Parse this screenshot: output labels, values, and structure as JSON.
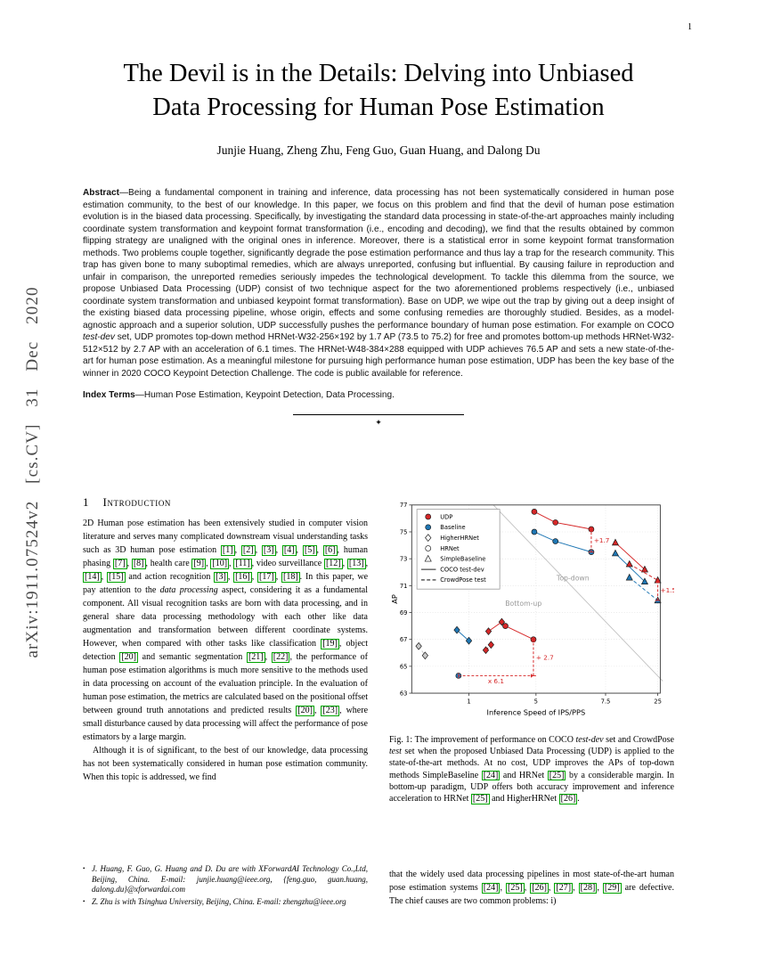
{
  "page": {
    "number": "1"
  },
  "arxiv_stamp": "arXiv:1911.07524v2 [cs.CV] 31 Dec 2020",
  "title": {
    "line1": "The Devil is in the Details: Delving into Unbiased",
    "line2": "Data Processing for Human Pose Estimation"
  },
  "authors": "Junjie Huang, Zheng Zhu, Feng Guo, Guan Huang, and Dalong Du",
  "abstract": {
    "label": "Abstract",
    "text": "—Being a fundamental component in training and inference, data processing has not been systematically considered in human pose estimation community, to the best of our knowledge. In this paper, we focus on this problem and find that the devil of human pose estimation evolution is in the biased data processing. Specifically, by investigating the standard data processing in state-of-the-art approaches mainly including coordinate system transformation and keypoint format transformation (i.e., encoding and decoding), we find that the results obtained by common flipping strategy are unaligned with the original ones in inference. Moreover, there is a statistical error in some keypoint format transformation methods. Two problems couple together, significantly degrade the pose estimation performance and thus lay a trap for the research community. This trap has given bone to many suboptimal remedies, which are always unreported, confusing but influential. By causing failure in reproduction and unfair in comparison, the unreported remedies seriously impedes the technological development. To tackle this dilemma from the source, we propose Unbiased Data Processing (UDP) consist of two technique aspect for the two aforementioned problems respectively (i.e., unbiased coordinate system transformation and unbiased keypoint format transformation). Base on UDP, we wipe out the trap by giving out a deep insight of the existing biased data processing pipeline, whose origin, effects and some confusing remedies are thoroughly studied. Besides, as a model-agnostic approach and a superior solution, UDP successfully pushes the performance boundary of human pose estimation. For example on COCO *test-dev* set, UDP promotes top-down method HRNet-W32-256×192 by 1.7 AP (73.5 to 75.2) for free and promotes bottom-up methods HRNet-W32-512×512 by 2.7 AP with an acceleration of 6.1 times. The HRNet-W48-384×288 equipped with UDP achieves 76.5 AP and sets a new state-of-the-art for human pose estimation. As a meaningful milestone for pursuing high performance human pose estimation, UDP has been the key base of the winner in 2020 COCO Keypoint Detection Challenge. The code is public available for reference."
  },
  "index_terms": {
    "label": "Index Terms",
    "text": "—Human Pose Estimation, Keypoint Detection, Data Processing."
  },
  "separator_glyph": "✦",
  "section1": {
    "number": "1",
    "title": "Introduction"
  },
  "intro": {
    "p1": "2D Human pose estimation has been extensively studied in computer vision literature and serves many complicated downstream visual understanding tasks such as 3D human pose estimation [1], [2], [3], [4], [5], [6], human phasing [7], [8], health care [9], [10], [11], video surveillance [12], [13], [14], [15] and action recognition [3], [16], [17], [18]. In this paper, we pay attention to the *data processing* aspect, considering it as a fundamental component. All visual recognition tasks are born with data processing, and in general share data processing methodology with each other like data augmentation and transformation between different coordinate systems. However, when compared with other tasks like classification [19], object detection [20] and semantic segmentation [21], [22], the performance of human pose estimation algorithms is much more sensitive to the methods used in data processing on account of the evaluation principle. In the evaluation of human pose estimation, the metrics are calculated based on the positional offset between ground truth annotations and predicted results [20], [23], where small disturbance caused by data processing will affect the performance of pose estimators by a large margin.",
    "p2": "Although it is of significant, to the best of our knowledge, data processing has not been systematically considered in human pose estimation community. When this topic is addressed, we find"
  },
  "footnotes": {
    "bullet": "•",
    "items": [
      "J. Huang, F. Guo, G. Huang and D. Du are with XForwardAI Technology Co.,Ltd, Beijing, China. E-mail: junjie.huang@ieee.org, {feng.guo, guan.huang, dalong.du}@xforwardai.com",
      "Z. Zhu is with Tsinghua University, Beijing, China. E-mail: zhengzhu@ieee.org"
    ]
  },
  "figure1": {
    "caption": "Fig. 1: The improvement of performance on COCO *test-dev* set and CrowdPose *test* set when the proposed Unbiased Data Processing (UDP) is applied to the state-of-the-art methods. At no cost, UDP improves the APs of top-down methods SimpleBaseline [24] and HRNet [25] by a considerable margin. In bottom-up paradigm, UDP offers both accuracy improvement and inference acceleration to HRNet [25] and HigherHRNet [26].",
    "chart_data": {
      "type": "scatter",
      "title": "",
      "xlabel": "Inference Speed of IPS/PPS",
      "ylabel": "AP",
      "ylim": [
        63,
        77
      ],
      "yticks": [
        63,
        65,
        67,
        69,
        71,
        73,
        75,
        77
      ],
      "xticks": [
        1,
        5,
        7.5,
        25
      ],
      "grid": true,
      "colors": {
        "udp": "#d62728",
        "baseline": "#1f77b4"
      },
      "legend": [
        {
          "label": "UDP",
          "marker": "circle",
          "color": "red"
        },
        {
          "label": "Baseline",
          "marker": "circle",
          "color": "blue"
        },
        {
          "label": "HigherHRNet",
          "marker": "diamond",
          "color": "white"
        },
        {
          "label": "HRNet",
          "marker": "circle",
          "color": "white"
        },
        {
          "label": "SimpleBaseline",
          "marker": "triangle",
          "color": "white"
        },
        {
          "label": "COCO test-dev",
          "marker": "line",
          "dash": false
        },
        {
          "label": "CrowdPose test",
          "marker": "line",
          "dash": true
        }
      ],
      "series": [
        {
          "name": "HRNet top-down COCO (UDP)",
          "marker": "circle",
          "color": "red",
          "line": "solid",
          "points": [
            [
              4.8,
              76.5
            ],
            [
              5.6,
              75.7
            ],
            [
              6.9,
              75.2
            ]
          ]
        },
        {
          "name": "HRNet top-down COCO (Baseline)",
          "marker": "circle",
          "color": "blue",
          "line": "solid",
          "points": [
            [
              4.8,
              75.0
            ],
            [
              5.6,
              74.3
            ],
            [
              6.9,
              73.5
            ]
          ]
        },
        {
          "name": "SimpleBaseline COCO (UDP)",
          "marker": "triangle",
          "color": "red",
          "line": "solid",
          "points": [
            [
              9.4,
              74.2
            ],
            [
              18.5,
              72.2
            ]
          ]
        },
        {
          "name": "SimpleBaseline COCO (Baseline)",
          "marker": "triangle",
          "color": "blue",
          "line": "solid",
          "points": [
            [
              9.4,
              73.4
            ],
            [
              18.5,
              71.3
            ]
          ]
        },
        {
          "name": "SimpleBaseline CrowdPose (UDP)",
          "marker": "triangle",
          "color": "red",
          "line": "dashed",
          "points": [
            [
              13,
              72.6
            ],
            [
              25,
              71.4
            ]
          ]
        },
        {
          "name": "SimpleBaseline CrowdPose (Baseline)",
          "marker": "triangle",
          "color": "blue",
          "line": "dashed",
          "points": [
            [
              13,
              71.6
            ],
            [
              25,
              69.9
            ]
          ]
        },
        {
          "name": "HigherHRNet bottom-up COCO (UDP)",
          "marker": "diamond",
          "color": "red",
          "line": "solid",
          "points": [
            [
              1.6,
              67.6
            ],
            [
              2.2,
              68.3
            ]
          ]
        },
        {
          "name": "HigherHRNet bottom-up COCO (Baseline)",
          "marker": "diamond",
          "color": "blue",
          "line": "solid",
          "points": [
            [
              0.75,
              67.7
            ],
            [
              1.0,
              66.9
            ]
          ]
        },
        {
          "name": "HigherHRNet bottom-up CrowdPose (UDP)",
          "marker": "diamond",
          "color": "red",
          "line": "dashed",
          "points": [
            [
              1.5,
              66.2
            ],
            [
              1.7,
              66.6
            ]
          ]
        },
        {
          "name": "HigherHRNet bottom-up CrowdPose (Baseline)",
          "marker": "diamond",
          "color": "gray",
          "line": "dashed",
          "points": [
            [
              0.3,
              66.5
            ],
            [
              0.35,
              65.8
            ]
          ]
        },
        {
          "name": "HRNet bottom-up COCO (UDP)",
          "marker": "circle",
          "color": "red",
          "line": "solid",
          "points": [
            [
              2.4,
              68.0
            ],
            [
              4.7,
              67.0
            ]
          ]
        },
        {
          "name": "HRNet bottom-up COCO (Baseline)",
          "marker": "circle",
          "color": "blue",
          "line": "solid",
          "points": [
            [
              0.78,
              64.3
            ]
          ]
        }
      ],
      "separator_line": {
        "from": [
          1.8,
          77
        ],
        "to": [
          28,
          63.9
        ]
      },
      "region_labels": [
        {
          "text": "Top-down",
          "x": 6.2,
          "y": 71.4
        },
        {
          "text": "Bottom-up",
          "x": 3.7,
          "y": 69.5
        }
      ],
      "annotations": [
        {
          "type": "v",
          "text": "+1.7",
          "x": 6.9,
          "from": 73.5,
          "to": 75.2
        },
        {
          "type": "v",
          "text": "+1.5",
          "x": 25,
          "from": 69.9,
          "to": 71.4
        },
        {
          "type": "v",
          "text": "+ 2.7",
          "x": 4.7,
          "from": 64.3,
          "to": 67.0
        },
        {
          "type": "h",
          "text": "x 6.1",
          "y": 64.3,
          "from": 0.78,
          "to": 4.7
        }
      ]
    }
  },
  "continuation": {
    "p": "that the widely used data processing pipelines in most state-of-the-art human pose estimation systems [24], [25], [26], [27], [28], [29] are defective. The chief causes are two common problems: i)"
  }
}
